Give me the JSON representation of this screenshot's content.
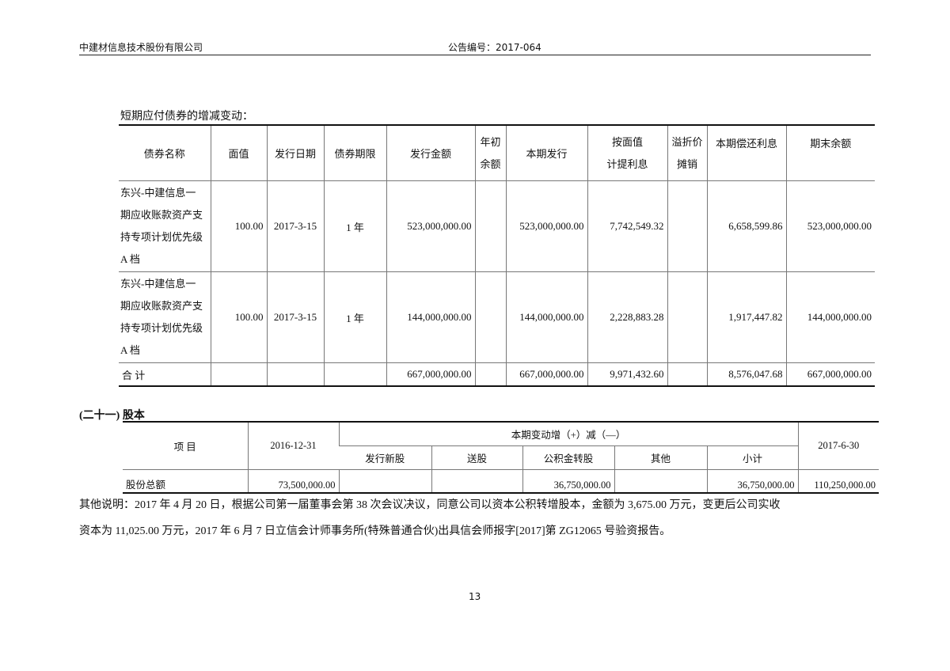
{
  "header": {
    "company": "中建材信息技术股份有限公司",
    "notice_no": "公告编号：2017-064"
  },
  "section1": {
    "title": "短期应付债券的增减变动：",
    "columns": [
      "债券名称",
      "面值",
      "发行日期",
      "债券期限",
      "发行金额",
      "年初余额",
      "本期发行",
      "按面值计提利息",
      "溢折价摊销",
      "本期偿还利息",
      "期末余额"
    ],
    "col_lines": {
      "c5": [
        "年初",
        "余额"
      ],
      "c7": [
        "按面值",
        "计提利息"
      ],
      "c8": [
        "溢折价",
        "摊销"
      ]
    },
    "rows": [
      {
        "name_lines": [
          "东兴-中建信息一",
          "期应收账款资产支",
          "持专项计划优先级",
          "A 档"
        ],
        "face": "100.00",
        "date": "2017-3-15",
        "term": "1 年",
        "issue_amount": "523,000,000.00",
        "opening": "",
        "issued": "523,000,000.00",
        "interest": "7,742,549.32",
        "amort": "",
        "repaid": "6,658,599.86",
        "closing": "523,000,000.00"
      },
      {
        "name_lines": [
          "东兴-中建信息一",
          "期应收账款资产支",
          "持专项计划优先级",
          "A 档"
        ],
        "face": "100.00",
        "date": "2017-3-15",
        "term": "1 年",
        "issue_amount": "144,000,000.00",
        "opening": "",
        "issued": "144,000,000.00",
        "interest": "2,228,883.28",
        "amort": "",
        "repaid": "1,917,447.82",
        "closing": "144,000,000.00"
      }
    ],
    "total": {
      "label": "合 计",
      "issue_amount": "667,000,000.00",
      "issued": "667,000,000.00",
      "interest": "9,971,432.60",
      "repaid": "8,576,047.68",
      "closing": "667,000,000.00"
    }
  },
  "section2": {
    "title": "(二十一) 股本",
    "col_item": "项 目",
    "col_open": "2016-12-31",
    "col_change": "本期变动增（+）减（—）",
    "sub": [
      "发行新股",
      "送股",
      "公积金转股",
      "其他",
      "小计"
    ],
    "col_close": "2017-6-30",
    "row": {
      "label": "股份总额",
      "open": "73,500,000.00",
      "new": "",
      "bonus": "",
      "reserve": "36,750,000.00",
      "other": "",
      "subtotal": "36,750,000.00",
      "close": "110,250,000.00"
    },
    "note_lines": [
      "其他说明：2017 年 4 月 20 日，根据公司第一届董事会第 38 次会议决议，同意公司以资本公积转增股本，金额为 3,675.00 万元，变更后公司实收",
      "资本为 11,025.00 万元，2017 年 6 月 7 日立信会计师事务所(特殊普通合伙)出具信会师报字[2017]第 ZG12065 号验资报告。"
    ]
  },
  "footer": {
    "page": "13"
  }
}
